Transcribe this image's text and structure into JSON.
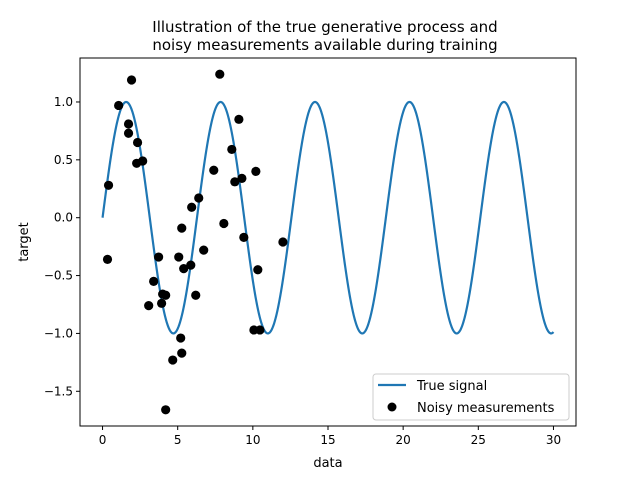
{
  "chart_data": {
    "type": "scatter+line",
    "title": "Illustration of the true generative process and\nnoisy measurements available during training",
    "title_lines": [
      "Illustration of the true generative process and",
      "noisy measurements available during training"
    ],
    "xlabel": "data",
    "ylabel": "target",
    "xlim": [
      -1.5,
      31.5
    ],
    "ylim": [
      -1.8,
      1.38
    ],
    "xticks": [
      0,
      5,
      10,
      15,
      20,
      25,
      30
    ],
    "xtick_labels": [
      "0",
      "5",
      "10",
      "15",
      "20",
      "25",
      "30"
    ],
    "yticks": [
      1.0,
      0.5,
      0.0,
      -0.5,
      -1.0,
      -1.5
    ],
    "ytick_labels": [
      "1.0",
      "0.5",
      "0.0",
      "−0.5",
      "−1.0",
      "−1.5"
    ],
    "grid": false,
    "legend_position": "lower right",
    "series": [
      {
        "name": "True signal",
        "type": "line",
        "function": "sin(x)",
        "x_range": [
          0,
          30
        ],
        "color": "#1f77b4"
      },
      {
        "name": "Noisy measurements",
        "type": "scatter",
        "color": "#000000",
        "points": [
          [
            0.4,
            0.28
          ],
          [
            0.33,
            -0.36
          ],
          [
            1.07,
            0.97
          ],
          [
            1.93,
            1.19
          ],
          [
            1.73,
            0.81
          ],
          [
            1.73,
            0.73
          ],
          [
            2.33,
            0.65
          ],
          [
            2.27,
            0.47
          ],
          [
            2.67,
            0.49
          ],
          [
            3.07,
            -0.76
          ],
          [
            3.4,
            -0.55
          ],
          [
            3.73,
            -0.34
          ],
          [
            3.93,
            -0.74
          ],
          [
            4.0,
            -0.66
          ],
          [
            4.2,
            -0.67
          ],
          [
            4.2,
            -1.66
          ],
          [
            4.67,
            -1.23
          ],
          [
            5.07,
            -0.34
          ],
          [
            5.2,
            -1.04
          ],
          [
            5.27,
            -0.09
          ],
          [
            5.27,
            -1.17
          ],
          [
            5.4,
            -0.44
          ],
          [
            5.87,
            -0.41
          ],
          [
            5.93,
            0.09
          ],
          [
            6.2,
            -0.67
          ],
          [
            6.4,
            0.17
          ],
          [
            6.73,
            -0.28
          ],
          [
            7.4,
            0.41
          ],
          [
            7.8,
            1.24
          ],
          [
            8.07,
            -0.05
          ],
          [
            8.6,
            0.59
          ],
          [
            8.8,
            0.31
          ],
          [
            9.07,
            0.85
          ],
          [
            9.27,
            0.34
          ],
          [
            9.4,
            -0.17
          ],
          [
            10.07,
            -0.97
          ],
          [
            10.2,
            0.4
          ],
          [
            10.33,
            -0.45
          ],
          [
            10.47,
            -0.97
          ],
          [
            12.0,
            -0.21
          ]
        ]
      }
    ]
  }
}
